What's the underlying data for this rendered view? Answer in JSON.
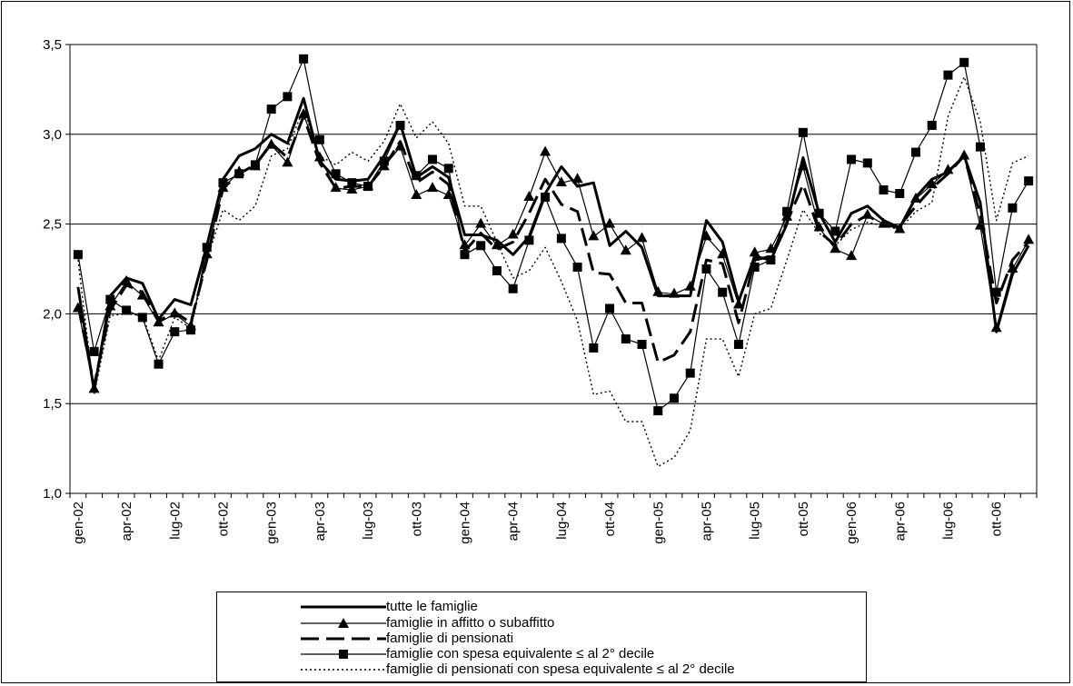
{
  "chart_data": {
    "type": "line",
    "title": "",
    "xlabel": "",
    "ylabel": "",
    "ylim": [
      1.0,
      3.5
    ],
    "yticks": [
      "1,0",
      "1,5",
      "2,0",
      "2,5",
      "3,0",
      "3,5"
    ],
    "grid": "horizontal",
    "legend_position": "bottom",
    "x_tick_labels": [
      "gen-02",
      "apr-02",
      "lug-02",
      "ott-02",
      "gen-03",
      "apr-03",
      "lug-03",
      "ott-03",
      "gen-04",
      "apr-04",
      "lug-04",
      "ott-04",
      "gen-05",
      "apr-05",
      "lug-05",
      "ott-05",
      "gen-06",
      "apr-06",
      "lug-06",
      "ott-06"
    ],
    "x": [
      "gen-02",
      "feb-02",
      "mar-02",
      "apr-02",
      "mag-02",
      "giu-02",
      "lug-02",
      "ago-02",
      "set-02",
      "ott-02",
      "nov-02",
      "dic-02",
      "gen-03",
      "feb-03",
      "mar-03",
      "apr-03",
      "mag-03",
      "giu-03",
      "lug-03",
      "ago-03",
      "set-03",
      "ott-03",
      "nov-03",
      "dic-03",
      "gen-04",
      "feb-04",
      "mar-04",
      "apr-04",
      "mag-04",
      "giu-04",
      "lug-04",
      "ago-04",
      "set-04",
      "ott-04",
      "nov-04",
      "dic-04",
      "gen-05",
      "feb-05",
      "mar-05",
      "apr-05",
      "mag-05",
      "giu-05",
      "lug-05",
      "ago-05",
      "set-05",
      "ott-05",
      "nov-05",
      "dic-05",
      "gen-06",
      "feb-06",
      "mar-06",
      "apr-06",
      "mag-06",
      "giu-06",
      "lug-06",
      "ago-06",
      "set-06",
      "ott-06",
      "nov-06",
      "dic-06"
    ],
    "series": [
      {
        "name": "tutte le famiglie",
        "style": "thick-solid",
        "values": [
          2.15,
          1.57,
          2.1,
          2.2,
          2.17,
          1.97,
          2.08,
          2.05,
          2.38,
          2.75,
          2.88,
          2.92,
          3.0,
          2.95,
          3.2,
          2.85,
          2.75,
          2.74,
          2.75,
          2.88,
          3.06,
          2.76,
          2.82,
          2.76,
          2.44,
          2.44,
          2.41,
          2.33,
          2.43,
          2.67,
          2.82,
          2.71,
          2.73,
          2.38,
          2.46,
          2.37,
          2.1,
          2.1,
          2.1,
          2.52,
          2.4,
          2.07,
          2.32,
          2.3,
          2.5,
          2.87,
          2.56,
          2.4,
          2.56,
          2.6,
          2.52,
          2.48,
          2.65,
          2.75,
          2.79,
          2.88,
          2.62,
          1.9,
          2.22,
          2.38
        ]
      },
      {
        "name": "famiglie in affitto o subaffitto",
        "style": "thin-triangle",
        "values": [
          2.03,
          1.58,
          2.04,
          2.18,
          2.1,
          1.95,
          2.0,
          1.93,
          2.33,
          2.7,
          2.79,
          2.82,
          2.94,
          2.84,
          3.11,
          2.87,
          2.7,
          2.69,
          2.71,
          2.82,
          2.93,
          2.66,
          2.7,
          2.66,
          2.38,
          2.5,
          2.38,
          2.44,
          2.65,
          2.9,
          2.73,
          2.75,
          2.43,
          2.5,
          2.35,
          2.42,
          2.12,
          2.11,
          2.15,
          2.43,
          2.33,
          2.05,
          2.34,
          2.36,
          2.54,
          2.82,
          2.48,
          2.36,
          2.32,
          2.55,
          2.5,
          2.47,
          2.64,
          2.72,
          2.8,
          2.88,
          2.49,
          1.92,
          2.25,
          2.41
        ]
      },
      {
        "name": "famiglie di pensionati",
        "style": "dashed",
        "values": [
          2.05,
          1.6,
          2.02,
          2.16,
          2.12,
          1.96,
          2.01,
          1.95,
          2.3,
          2.7,
          2.78,
          2.83,
          2.95,
          2.87,
          3.1,
          2.84,
          2.7,
          2.71,
          2.71,
          2.82,
          2.96,
          2.73,
          2.79,
          2.72,
          2.35,
          2.45,
          2.36,
          2.4,
          2.56,
          2.75,
          2.61,
          2.57,
          2.23,
          2.22,
          2.06,
          2.06,
          1.73,
          1.77,
          1.9,
          2.3,
          2.28,
          1.95,
          2.3,
          2.32,
          2.51,
          2.72,
          2.46,
          2.38,
          2.5,
          2.55,
          2.49,
          2.49,
          2.6,
          2.7,
          2.78,
          2.88,
          2.55,
          2.06,
          2.3,
          2.4
        ]
      },
      {
        "name": "famiglie con spesa equivalente ≤ al 2° decile",
        "style": "thin-square",
        "values": [
          2.33,
          1.79,
          2.08,
          2.02,
          1.98,
          1.72,
          1.9,
          1.91,
          2.37,
          2.73,
          2.78,
          2.83,
          3.14,
          3.21,
          3.42,
          2.97,
          2.78,
          2.73,
          2.71,
          2.85,
          3.05,
          2.77,
          2.86,
          2.81,
          2.33,
          2.38,
          2.24,
          2.14,
          2.41,
          2.65,
          2.42,
          2.26,
          1.81,
          2.03,
          1.86,
          1.83,
          1.46,
          1.53,
          1.67,
          2.25,
          2.12,
          1.83,
          2.26,
          2.3,
          2.57,
          3.01,
          2.56,
          2.46,
          2.86,
          2.84,
          2.69,
          2.67,
          2.9,
          3.05,
          3.33,
          3.4,
          2.93,
          2.12,
          2.59,
          2.74
        ]
      },
      {
        "name": "famiglie di pensionati con spesa equivalente ≤ al 2° decile",
        "style": "dotted",
        "values": [
          2.3,
          1.55,
          1.99,
          2.0,
          1.99,
          1.74,
          1.98,
          1.92,
          2.3,
          2.58,
          2.52,
          2.6,
          2.88,
          2.92,
          3.14,
          2.88,
          2.83,
          2.9,
          2.85,
          2.96,
          3.17,
          2.98,
          3.07,
          2.95,
          2.6,
          2.6,
          2.4,
          2.2,
          2.24,
          2.37,
          2.18,
          1.96,
          1.55,
          1.57,
          1.4,
          1.4,
          1.15,
          1.2,
          1.35,
          1.86,
          1.86,
          1.65,
          2.0,
          2.03,
          2.3,
          2.58,
          2.45,
          2.38,
          2.47,
          2.51,
          2.49,
          2.47,
          2.57,
          2.62,
          3.1,
          3.32,
          3.07,
          2.52,
          2.84,
          2.88
        ]
      }
    ]
  }
}
